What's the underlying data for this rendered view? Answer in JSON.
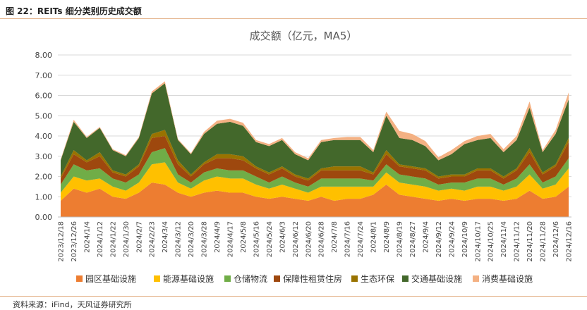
{
  "figure": {
    "caption": "图 22：REITs 细分类别历史成交额",
    "source": "资料来源：iFind，天风证券研究所"
  },
  "chart_data": {
    "type": "area",
    "stacked": true,
    "title": "成交额（亿元，MA5）",
    "xlabel": "",
    "ylabel": "",
    "ylim": [
      0,
      8
    ],
    "yticks": [
      "0.00",
      "1.00",
      "2.00",
      "3.00",
      "4.00",
      "5.00",
      "6.00",
      "7.00",
      "8.00"
    ],
    "x_tick_labels": [
      "2023/12/18",
      "2023/12/26",
      "2024/1/4",
      "2024/1/12",
      "2024/1/22",
      "2024/1/30",
      "2024/2/7",
      "2024/2/23",
      "2024/3/4",
      "2024/3/12",
      "2024/3/20",
      "2024/3/28",
      "2024/4/9",
      "2024/4/17",
      "2024/5/8",
      "2024/5/16",
      "2024/5/24",
      "2024/6/3",
      "2024/6/12",
      "2024/6/20",
      "2024/6/28",
      "2024/7/8",
      "2024/7/16",
      "2024/7/24",
      "2024/8/1",
      "2024/8/9",
      "2024/8/19",
      "2024/8/27",
      "2024/9/4",
      "2024/9/12",
      "2024/9/24",
      "2024/10/9",
      "2024/10/17",
      "2024/10/25",
      "2024/11/4",
      "2024/11/12",
      "2024/11/20",
      "2024/11/28",
      "2024/12/6",
      "2024/12/16"
    ],
    "series": [
      {
        "name": "园区基础设施",
        "color": "#ED7D31",
        "values": [
          0.8,
          1.4,
          1.2,
          1.4,
          1.0,
          0.9,
          1.2,
          1.7,
          1.6,
          1.2,
          1.0,
          1.2,
          1.3,
          1.2,
          1.2,
          1.0,
          0.9,
          1.0,
          0.9,
          0.8,
          1.0,
          0.8,
          0.9,
          0.9,
          1.1,
          1.6,
          1.1,
          1.0,
          0.9,
          0.8,
          0.9,
          0.8,
          0.9,
          0.9,
          0.8,
          0.9,
          1.3,
          0.9,
          1.0,
          1.5
        ]
      },
      {
        "name": "能源基础设施",
        "color": "#FFC000",
        "values": [
          0.4,
          0.6,
          0.6,
          0.5,
          0.5,
          0.4,
          0.5,
          0.9,
          1.1,
          0.5,
          0.4,
          0.6,
          0.7,
          0.7,
          0.7,
          0.6,
          0.5,
          0.6,
          0.5,
          0.4,
          0.5,
          0.7,
          0.6,
          0.6,
          0.4,
          0.6,
          0.6,
          0.6,
          0.6,
          0.5,
          0.5,
          0.5,
          0.6,
          0.6,
          0.5,
          0.6,
          0.8,
          0.5,
          0.6,
          0.9
        ]
      },
      {
        "name": "仓储物流",
        "color": "#70AD47",
        "values": [
          0.4,
          0.6,
          0.5,
          0.5,
          0.4,
          0.4,
          0.4,
          0.6,
          0.7,
          0.4,
          0.3,
          0.4,
          0.4,
          0.4,
          0.4,
          0.4,
          0.3,
          0.4,
          0.3,
          0.3,
          0.4,
          0.4,
          0.4,
          0.4,
          0.3,
          0.4,
          0.4,
          0.4,
          0.4,
          0.3,
          0.3,
          0.4,
          0.4,
          0.4,
          0.3,
          0.4,
          0.5,
          0.3,
          0.4,
          0.5
        ]
      },
      {
        "name": "保障性租赁住房",
        "color": "#9E480E",
        "values": [
          0.3,
          0.5,
          0.4,
          0.6,
          0.3,
          0.3,
          0.4,
          0.7,
          0.6,
          0.5,
          0.3,
          0.4,
          0.5,
          0.6,
          0.5,
          0.4,
          0.4,
          0.4,
          0.3,
          0.3,
          0.4,
          0.4,
          0.4,
          0.4,
          0.3,
          0.5,
          0.4,
          0.4,
          0.4,
          0.3,
          0.3,
          0.3,
          0.4,
          0.4,
          0.3,
          0.4,
          0.6,
          0.4,
          0.5,
          0.8
        ]
      },
      {
        "name": "生态环保",
        "color": "#997300",
        "values": [
          0.1,
          0.2,
          0.1,
          0.2,
          0.1,
          0.1,
          0.1,
          0.2,
          0.3,
          0.2,
          0.1,
          0.1,
          0.2,
          0.2,
          0.2,
          0.1,
          0.1,
          0.1,
          0.1,
          0.1,
          0.1,
          0.2,
          0.2,
          0.2,
          0.1,
          0.2,
          0.1,
          0.1,
          0.1,
          0.1,
          0.1,
          0.1,
          0.1,
          0.1,
          0.1,
          0.1,
          0.2,
          0.1,
          0.1,
          0.2
        ]
      },
      {
        "name": "交通基础设施",
        "color": "#43682B",
        "values": [
          0.8,
          1.4,
          1.1,
          1.2,
          1.0,
          0.9,
          1.3,
          2.0,
          2.3,
          1.0,
          1.0,
          1.4,
          1.5,
          1.6,
          1.5,
          1.2,
          1.3,
          1.3,
          1.0,
          0.9,
          1.3,
          1.3,
          1.3,
          1.3,
          1.0,
          1.7,
          1.3,
          1.3,
          1.1,
          0.8,
          1.0,
          1.5,
          1.4,
          1.5,
          1.2,
          1.4,
          2.0,
          1.0,
          1.5,
          1.9
        ]
      },
      {
        "name": "消费基础设施",
        "color": "#F4B183",
        "values": [
          0.05,
          0.1,
          0.05,
          0.05,
          0.05,
          0.05,
          0.05,
          0.1,
          0.1,
          0.05,
          0.05,
          0.1,
          0.15,
          0.15,
          0.15,
          0.1,
          0.1,
          0.1,
          0.1,
          0.1,
          0.1,
          0.1,
          0.15,
          0.15,
          0.1,
          0.2,
          0.35,
          0.3,
          0.25,
          0.15,
          0.2,
          0.15,
          0.2,
          0.2,
          0.15,
          0.2,
          0.3,
          0.1,
          0.2,
          0.35
        ]
      }
    ]
  }
}
